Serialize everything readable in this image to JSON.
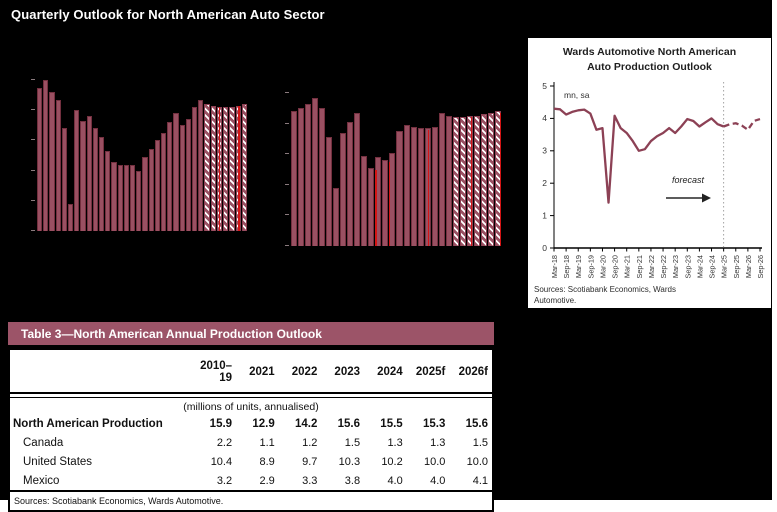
{
  "banner": {
    "title": "Quarterly Outlook for North American Auto Sector",
    "bg_color": "#9C5468"
  },
  "line_panel": {
    "title_line1": "Wards Automotive North American",
    "title_line2": "Auto Production Outlook",
    "unit_label": "mn, sa",
    "forecast_label": "forecast",
    "sources": "Sources: Scotiabank Economics, Wards Automotive.",
    "y_tick_labels": [
      "0",
      "1",
      "2",
      "3",
      "4",
      "5"
    ]
  },
  "table": {
    "band_title": "Table 3—North American Annual Production Outlook",
    "columns": [
      "2010–19",
      "2021",
      "2022",
      "2023",
      "2024",
      "2025f",
      "2026f"
    ],
    "units_note": "(millions of units, annualised)",
    "rows": [
      {
        "label": "North American Production",
        "bold": true,
        "values": [
          "15.9",
          "12.9",
          "14.2",
          "15.6",
          "15.5",
          "15.3",
          "15.6"
        ]
      },
      {
        "label": "Canada",
        "bold": false,
        "values": [
          "2.2",
          "1.1",
          "1.2",
          "1.5",
          "1.3",
          "1.3",
          "1.5"
        ]
      },
      {
        "label": "United States",
        "bold": false,
        "values": [
          "10.4",
          "8.9",
          "9.7",
          "10.3",
          "10.2",
          "10.0",
          "10.0"
        ]
      },
      {
        "label": "Mexico",
        "bold": false,
        "values": [
          "3.2",
          "2.9",
          "3.3",
          "3.8",
          "4.0",
          "4.0",
          "4.1"
        ]
      }
    ],
    "sources": "Sources: Scotiabank Economics, Wards Automotive."
  },
  "chart_data": [
    {
      "id": "bar-left",
      "type": "bar",
      "note": "quarterly production bars; axis and title text not visible (rendered on black background); last 7 bars hatched = forecast",
      "bar_color": "#9A5062",
      "n_forecast_hatched": 7,
      "values_pct": [
        95,
        100,
        92,
        87,
        68,
        18,
        80,
        73,
        76,
        68,
        62,
        53,
        46,
        44,
        44,
        44,
        40,
        49,
        54,
        60,
        65,
        72,
        78,
        70,
        74,
        82,
        87,
        84,
        83,
        82,
        82,
        82,
        83,
        84
      ],
      "red_markers": [
        {
          "x_frac": 0.865,
          "h_frac": 0.82
        },
        {
          "x_frac": 0.958,
          "h_frac": 0.83
        }
      ]
    },
    {
      "id": "bar-right",
      "type": "bar",
      "note": "quarterly bars; axis and title text not visible (rendered on black background); last 7 bars hatched = forecast",
      "bar_color": "#9A5062",
      "n_forecast_hatched": 7,
      "values_pct": [
        88,
        90,
        93,
        97,
        90,
        71,
        38,
        74,
        81,
        87,
        59,
        51,
        58,
        56,
        61,
        75,
        79,
        78,
        77,
        77,
        78,
        87,
        85,
        84,
        84,
        85,
        85,
        86,
        87,
        88
      ],
      "red_markers": [
        {
          "x_frac": 0.4,
          "h_frac": 0.5
        },
        {
          "x_frac": 0.465,
          "h_frac": 0.55
        },
        {
          "x_frac": 0.65,
          "h_frac": 0.76
        },
        {
          "x_frac": 0.855,
          "h_frac": 0.84
        },
        {
          "x_frac": 0.995,
          "h_frac": 0.87
        }
      ]
    },
    {
      "id": "line-outlook",
      "type": "line",
      "title": "Wards Automotive North American Auto Production Outlook",
      "ylabel": "mn, sa",
      "ylim": [
        0,
        5
      ],
      "y_ticks": [
        0,
        1,
        2,
        3,
        4,
        5
      ],
      "x_tick_labels": [
        "Mar-18",
        "Sep-18",
        "Mar-19",
        "Sep-19",
        "Mar-20",
        "Sep-20",
        "Mar-21",
        "Sep-21",
        "Mar-22",
        "Sep-22",
        "Mar-23",
        "Sep-23",
        "Mar-24",
        "Sep-24",
        "Mar-25",
        "Sep-25",
        "Mar-26",
        "Sep-26"
      ],
      "values": [
        4.3,
        4.28,
        4.12,
        4.2,
        4.25,
        4.27,
        4.15,
        3.65,
        3.7,
        1.4,
        4.08,
        3.7,
        3.55,
        3.3,
        3.0,
        3.05,
        3.3,
        3.45,
        3.55,
        3.7,
        3.55,
        3.75,
        3.98,
        3.92,
        3.75,
        3.88,
        4.0,
        3.82,
        3.75,
        3.82,
        3.85,
        3.78,
        3.65,
        3.92,
        3.98
      ],
      "forecast_start_index": 28,
      "line_color": "#8C4155",
      "legend": "none",
      "grid": "off"
    }
  ]
}
